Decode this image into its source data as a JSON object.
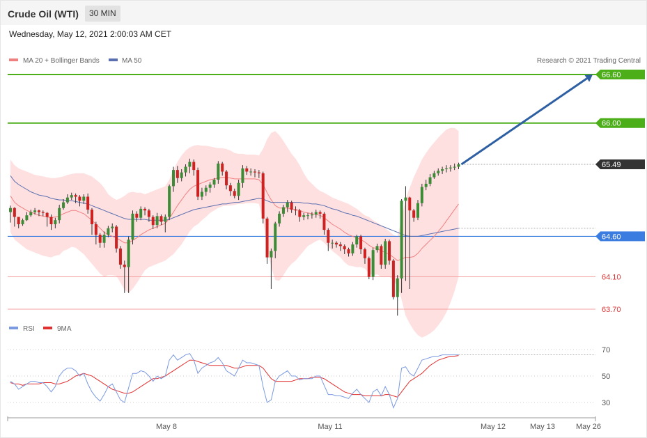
{
  "header": {
    "title": "Crude Oil (WTI)",
    "interval": "30 MIN"
  },
  "timestamp": "Wednesday, May 12, 2021 2:00:03 AM CET",
  "legend": {
    "ma20": "MA 20 + Bollinger Bands",
    "ma50": "MA 50",
    "credit": "Research © 2021 Trading Central",
    "rsi": "RSI",
    "rsi_ma": "9MA"
  },
  "colors": {
    "candle_up": "#3d8b37",
    "candle_down": "#cc2222",
    "bollinger_fill": "#ffd6d6",
    "ma20": "#f08080",
    "ma50": "#5b6fb0",
    "resistance": "#4caf1a",
    "pivot": "#3a7ce0",
    "support": "#f4a0a0",
    "arrow": "#2e5fa3",
    "rsi": "#7a99e0",
    "rsi_ma": "#e03030"
  },
  "x_axis": {
    "labels": [
      "May 8",
      "May 11",
      "May 12",
      "May 13",
      "May 26"
    ]
  },
  "rsi_axis": {
    "labels": [
      "70",
      "50",
      "30"
    ]
  },
  "chart_data": [
    {
      "type": "candlestick",
      "title": "Crude Oil (WTI)",
      "timeframe": "30 MIN",
      "y_range": [
        63.6,
        66.75
      ],
      "levels": [
        {
          "value": 66.6,
          "label": "66.60",
          "role": "resistance"
        },
        {
          "value": 66.0,
          "label": "66.00",
          "role": "resistance"
        },
        {
          "value": 65.49,
          "label": "65.49",
          "role": "last price"
        },
        {
          "value": 64.6,
          "label": "64.60",
          "role": "pivot"
        },
        {
          "value": 64.1,
          "label": "64.10",
          "role": "support"
        },
        {
          "value": 63.7,
          "label": "63.70",
          "role": "support"
        }
      ],
      "projection": {
        "from": 65.49,
        "to": 66.6,
        "direction": "up"
      },
      "close": [
        64.95,
        64.84,
        64.75,
        64.8,
        64.86,
        64.9,
        64.92,
        64.9,
        64.89,
        64.84,
        64.75,
        64.8,
        64.95,
        65.02,
        65.08,
        65.11,
        65.09,
        65.04,
        65.09,
        64.93,
        64.75,
        64.62,
        64.52,
        64.62,
        64.7,
        64.72,
        64.45,
        64.25,
        64.22,
        64.56,
        64.88,
        64.83,
        64.94,
        64.92,
        64.84,
        64.74,
        64.85,
        64.78,
        64.84,
        65.22,
        65.42,
        65.32,
        65.39,
        65.46,
        65.52,
        65.42,
        65.09,
        65.15,
        65.2,
        65.24,
        65.3,
        65.5,
        65.4,
        65.23,
        65.16,
        65.1,
        65.26,
        65.44,
        65.4,
        65.4,
        65.39,
        65.38,
        64.82,
        64.34,
        64.42,
        64.76,
        64.88,
        64.96,
        65.02,
        64.93,
        64.92,
        64.84,
        64.86,
        64.86,
        64.87,
        64.9,
        64.88,
        64.68,
        64.52,
        64.52,
        64.5,
        64.48,
        64.44,
        64.39,
        64.5,
        64.6,
        64.44,
        64.33,
        64.1,
        64.43,
        64.48,
        64.25,
        64.54,
        64.3,
        63.85,
        64.08,
        65.04,
        65.08,
        64.92,
        64.83,
        65.01,
        65.21,
        65.25,
        65.33,
        65.38,
        65.41,
        65.43,
        65.44,
        65.45,
        65.46,
        65.49
      ],
      "high": [
        64.98,
        64.96,
        64.8,
        64.82,
        64.9,
        64.93,
        64.95,
        64.93,
        64.92,
        64.9,
        64.87,
        64.83,
        64.99,
        65.06,
        65.12,
        65.14,
        65.13,
        65.11,
        65.12,
        65.13,
        64.95,
        64.78,
        64.64,
        64.66,
        64.73,
        64.76,
        64.74,
        64.48,
        64.3,
        64.6,
        64.92,
        64.91,
        64.97,
        64.96,
        64.94,
        64.86,
        64.89,
        64.87,
        64.87,
        65.24,
        65.46,
        65.47,
        65.43,
        65.49,
        65.56,
        65.55,
        65.45,
        65.2,
        65.23,
        65.27,
        65.32,
        65.53,
        65.52,
        65.42,
        65.26,
        65.19,
        65.3,
        65.48,
        65.47,
        65.44,
        65.43,
        65.42,
        65.4,
        64.84,
        64.45,
        64.78,
        64.91,
        64.99,
        65.05,
        65.04,
        64.97,
        64.94,
        64.89,
        64.89,
        64.9,
        64.93,
        64.92,
        64.9,
        64.7,
        64.56,
        64.54,
        64.53,
        64.5,
        64.46,
        64.53,
        64.62,
        64.62,
        64.46,
        64.35,
        64.46,
        64.51,
        64.5,
        64.57,
        64.56,
        64.32,
        64.12,
        65.06,
        65.22,
        65.09,
        64.94,
        65.05,
        65.25,
        65.3,
        65.37,
        65.41,
        65.44,
        65.46,
        65.48,
        65.48,
        65.5,
        65.51
      ],
      "low": [
        64.77,
        64.72,
        64.7,
        64.73,
        64.79,
        64.84,
        64.87,
        64.85,
        64.85,
        64.72,
        64.68,
        64.7,
        64.76,
        64.93,
        65.0,
        65.05,
        65.01,
        64.97,
        65.0,
        64.88,
        64.62,
        64.5,
        64.46,
        64.46,
        64.59,
        64.65,
        64.4,
        64.2,
        63.9,
        63.9,
        64.5,
        64.78,
        64.8,
        64.86,
        64.78,
        64.69,
        64.7,
        64.74,
        64.65,
        64.8,
        65.15,
        65.26,
        65.28,
        65.34,
        65.38,
        65.35,
        65.05,
        65.05,
        65.1,
        65.14,
        65.2,
        65.25,
        65.35,
        65.18,
        65.1,
        65.07,
        65.05,
        65.2,
        65.36,
        65.35,
        65.33,
        65.32,
        64.76,
        64.26,
        63.95,
        64.33,
        64.72,
        64.84,
        64.9,
        64.89,
        64.86,
        64.78,
        64.8,
        64.81,
        64.82,
        64.83,
        64.82,
        64.62,
        64.42,
        64.45,
        64.46,
        64.42,
        64.38,
        64.35,
        64.36,
        64.46,
        64.38,
        64.26,
        64.07,
        64.06,
        64.4,
        64.2,
        64.2,
        64.25,
        63.82,
        63.62,
        63.9,
        64.05,
        63.95,
        64.78,
        64.8,
        64.97,
        65.17,
        65.22,
        65.31,
        65.35,
        65.37,
        65.39,
        65.4,
        65.42,
        65.43
      ],
      "ma20": [
        65.1,
        65.02,
        64.98,
        64.95,
        64.92,
        64.9,
        64.88,
        64.86,
        64.85,
        64.84,
        64.83,
        64.84,
        64.85,
        64.88,
        64.9,
        64.92,
        64.92,
        64.9,
        64.88,
        64.84,
        64.8,
        64.75,
        64.7,
        64.65,
        64.62,
        64.6,
        64.58,
        64.55,
        64.52,
        64.52,
        64.55,
        64.58,
        64.62,
        64.65,
        64.68,
        64.7,
        64.72,
        64.74,
        64.76,
        64.82,
        64.9,
        64.98,
        65.05,
        65.12,
        65.18,
        65.22,
        65.24,
        65.26,
        65.28,
        65.3,
        65.31,
        65.32,
        65.33,
        65.33,
        65.32,
        65.31,
        65.31,
        65.31,
        65.31,
        65.31,
        65.31,
        65.3,
        65.24,
        65.14,
        65.05,
        64.98,
        64.95,
        64.95,
        64.95,
        64.94,
        64.93,
        64.92,
        64.9,
        64.89,
        64.88,
        64.87,
        64.86,
        64.83,
        64.79,
        64.75,
        64.72,
        64.69,
        64.65,
        64.62,
        64.6,
        64.58,
        64.56,
        64.53,
        64.49,
        64.46,
        64.45,
        64.42,
        64.4,
        64.38,
        64.34,
        64.3,
        64.32,
        64.34,
        64.34,
        64.35,
        64.39,
        64.45,
        64.5,
        64.55,
        64.6,
        64.66,
        64.72,
        64.79,
        64.86,
        64.93,
        65.0
      ],
      "ma50": [
        65.35,
        65.28,
        65.24,
        65.21,
        65.18,
        65.15,
        65.13,
        65.11,
        65.1,
        65.09,
        65.07,
        65.06,
        65.05,
        65.05,
        65.04,
        65.04,
        65.03,
        65.02,
        65.01,
        65.0,
        64.98,
        64.96,
        64.94,
        64.92,
        64.9,
        64.88,
        64.86,
        64.84,
        64.82,
        64.81,
        64.81,
        64.81,
        64.81,
        64.81,
        64.8,
        64.8,
        64.8,
        64.8,
        64.8,
        64.81,
        64.83,
        64.85,
        64.87,
        64.89,
        64.91,
        64.93,
        64.94,
        64.95,
        64.96,
        64.97,
        64.98,
        64.99,
        65.0,
        65.0,
        65.01,
        65.02,
        65.02,
        65.03,
        65.04,
        65.05,
        65.06,
        65.07,
        65.06,
        65.04,
        65.02,
        65.02,
        65.02,
        65.02,
        65.02,
        65.02,
        65.02,
        65.02,
        65.01,
        65.01,
        65.0,
        65.0,
        64.99,
        64.98,
        64.96,
        64.94,
        64.93,
        64.91,
        64.89,
        64.88,
        64.86,
        64.85,
        64.83,
        64.81,
        64.79,
        64.77,
        64.75,
        64.73,
        64.71,
        64.69,
        64.67,
        64.65,
        64.63,
        64.61,
        64.6,
        64.6,
        64.6,
        64.61,
        64.62,
        64.63,
        64.64,
        64.65,
        64.66,
        64.67,
        64.68,
        64.69,
        64.7
      ],
      "bb_upper": [
        65.55,
        65.48,
        65.44,
        65.42,
        65.4,
        65.38,
        65.36,
        65.35,
        65.34,
        65.33,
        65.32,
        65.32,
        65.33,
        65.34,
        65.36,
        65.37,
        65.38,
        65.38,
        65.38,
        65.36,
        65.34,
        65.3,
        65.26,
        65.2,
        65.12,
        65.08,
        65.05,
        65.07,
        65.1,
        65.14,
        65.15,
        65.14,
        65.14,
        65.12,
        65.14,
        65.16,
        65.18,
        65.2,
        65.22,
        65.3,
        65.42,
        65.52,
        65.6,
        65.66,
        65.7,
        65.72,
        65.73,
        65.72,
        65.72,
        65.71,
        65.7,
        65.69,
        65.69,
        65.68,
        65.66,
        65.63,
        65.62,
        65.62,
        65.61,
        65.61,
        65.61,
        65.6,
        65.68,
        65.8,
        65.88,
        65.9,
        65.85,
        65.78,
        65.7,
        65.62,
        65.56,
        65.48,
        65.38,
        65.3,
        65.25,
        65.2,
        65.16,
        65.14,
        65.11,
        65.08,
        65.06,
        65.04,
        65.02,
        65.0,
        64.97,
        64.94,
        64.9,
        64.86,
        64.84,
        64.8,
        64.77,
        64.74,
        64.7,
        64.66,
        64.62,
        64.6,
        64.82,
        65.06,
        65.2,
        65.33,
        65.44,
        65.55,
        65.63,
        65.7,
        65.76,
        65.82,
        65.87,
        65.92,
        65.94,
        65.94,
        65.9
      ],
      "bb_lower": [
        64.65,
        64.56,
        64.52,
        64.48,
        64.44,
        64.42,
        64.4,
        64.38,
        64.36,
        64.35,
        64.34,
        64.36,
        64.37,
        64.42,
        64.44,
        64.47,
        64.46,
        64.42,
        64.38,
        64.32,
        64.26,
        64.2,
        64.14,
        64.1,
        64.12,
        64.12,
        64.11,
        64.03,
        63.94,
        63.9,
        63.95,
        64.02,
        64.1,
        64.18,
        64.22,
        64.24,
        64.26,
        64.28,
        64.3,
        64.34,
        64.38,
        64.44,
        64.5,
        64.58,
        64.66,
        64.72,
        64.75,
        64.8,
        64.84,
        64.89,
        64.92,
        64.95,
        64.97,
        64.98,
        64.98,
        64.99,
        65.0,
        65.0,
        65.01,
        65.01,
        65.01,
        65.0,
        64.8,
        64.48,
        64.22,
        64.06,
        64.05,
        64.12,
        64.2,
        64.26,
        64.3,
        64.36,
        64.42,
        64.48,
        64.51,
        64.54,
        64.56,
        64.52,
        64.47,
        64.42,
        64.38,
        64.34,
        64.28,
        64.24,
        64.23,
        64.22,
        64.22,
        64.2,
        64.14,
        64.12,
        64.13,
        64.1,
        64.1,
        64.1,
        64.06,
        63.98,
        63.82,
        63.62,
        63.52,
        63.44,
        63.38,
        63.35,
        63.37,
        63.4,
        63.44,
        63.5,
        63.57,
        63.66,
        63.78,
        63.92,
        64.1
      ]
    },
    {
      "type": "line",
      "title": "RSI",
      "y_range": [
        20,
        80
      ],
      "gridlines": [
        70,
        50,
        30
      ],
      "series": [
        {
          "name": "RSI",
          "values": [
            46,
            44,
            40,
            42,
            44,
            46,
            46,
            45,
            45,
            42,
            38,
            42,
            50,
            54,
            56,
            56,
            54,
            50,
            52,
            44,
            38,
            34,
            31,
            36,
            42,
            44,
            38,
            32,
            30,
            41,
            52,
            52,
            54,
            53,
            50,
            46,
            50,
            48,
            50,
            62,
            66,
            62,
            64,
            66,
            67,
            62,
            52,
            56,
            58,
            60,
            61,
            64,
            60,
            54,
            52,
            50,
            56,
            62,
            60,
            60,
            59,
            58,
            42,
            30,
            32,
            46,
            50,
            52,
            54,
            50,
            50,
            47,
            48,
            48,
            48,
            50,
            50,
            43,
            36,
            36,
            35,
            35,
            34,
            33,
            37,
            40,
            36,
            33,
            30,
            38,
            40,
            35,
            42,
            36,
            26,
            33,
            56,
            57,
            52,
            50,
            56,
            62,
            63,
            64,
            65,
            65,
            66,
            66,
            66,
            66,
            66
          ]
        },
        {
          "name": "9MA",
          "values": [
            45,
            44,
            44,
            43,
            44,
            44,
            44,
            44,
            45,
            45,
            45,
            44,
            44,
            45,
            46,
            48,
            50,
            51,
            52,
            51,
            50,
            48,
            46,
            44,
            42,
            40,
            39,
            38,
            37,
            37,
            38,
            40,
            42,
            44,
            46,
            48,
            48,
            49,
            50,
            52,
            54,
            56,
            58,
            60,
            62,
            62,
            61,
            60,
            59,
            58,
            58,
            58,
            58,
            58,
            57,
            56,
            56,
            57,
            58,
            58,
            58,
            58,
            56,
            52,
            48,
            46,
            46,
            46,
            46,
            46,
            47,
            48,
            48,
            48,
            49,
            49,
            49,
            48,
            46,
            44,
            42,
            40,
            38,
            37,
            36,
            36,
            36,
            35,
            35,
            35,
            35,
            35,
            36,
            36,
            35,
            34,
            38,
            42,
            46,
            48,
            50,
            52,
            55,
            58,
            60,
            62,
            63,
            64,
            65,
            65,
            65.5
          ]
        }
      ]
    }
  ]
}
